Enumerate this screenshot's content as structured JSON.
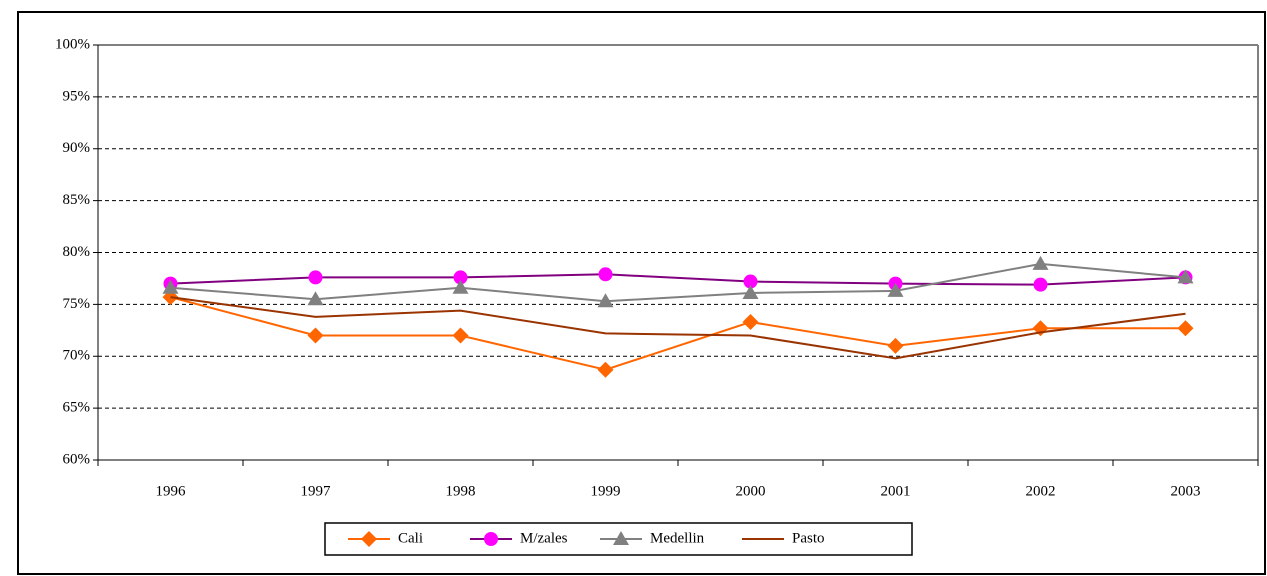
{
  "chart_data": {
    "type": "line",
    "categories": [
      "1996",
      "1997",
      "1998",
      "1999",
      "2000",
      "2001",
      "2002",
      "2003"
    ],
    "series": [
      {
        "name": "Cali",
        "color": "#ff6600",
        "marker": "diamond",
        "marker_color": "#ff6600",
        "values": [
          75.7,
          72.0,
          72.0,
          68.7,
          73.3,
          71.0,
          72.7,
          72.7
        ]
      },
      {
        "name": "M/zales",
        "color": "#800080",
        "marker": "circle",
        "marker_color": "#ff00ff",
        "values": [
          77.0,
          77.6,
          77.6,
          77.9,
          77.2,
          77.0,
          76.9,
          77.6
        ]
      },
      {
        "name": "Medellin",
        "color": "#808080",
        "marker": "triangle",
        "marker_color": "#808080",
        "values": [
          76.6,
          75.5,
          76.6,
          75.3,
          76.1,
          76.3,
          78.9,
          77.6
        ]
      },
      {
        "name": "Pasto",
        "color": "#993300",
        "marker": "none",
        "marker_color": "#993300",
        "values": [
          75.7,
          73.8,
          74.4,
          72.2,
          72.0,
          69.8,
          72.3,
          74.1
        ]
      }
    ],
    "ylim": [
      60,
      100
    ],
    "yticks": [
      {
        "value": 60,
        "label": "60%"
      },
      {
        "value": 65,
        "label": "65%"
      },
      {
        "value": 70,
        "label": "70%"
      },
      {
        "value": 75,
        "label": "75%"
      },
      {
        "value": 80,
        "label": "80%"
      },
      {
        "value": 85,
        "label": "85%"
      },
      {
        "value": 90,
        "label": "90%"
      },
      {
        "value": 95,
        "label": "95%"
      },
      {
        "value": 100,
        "label": "100%"
      }
    ],
    "grid": true,
    "legend": "bottom"
  }
}
